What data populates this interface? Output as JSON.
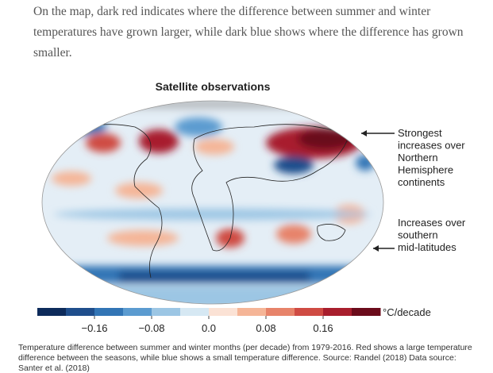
{
  "intro": "On the map, dark red indicates where the difference between summer and winter temperatures have grown larger, while dark blue shows where the difference has grown smaller.",
  "map": {
    "title": "Satellite observations",
    "annotations": [
      {
        "lines": [
          "Strongest",
          "increases over",
          "Northern",
          "Hemisphere",
          "continents"
        ]
      },
      {
        "lines": [
          "Increases over",
          "southern",
          "mid-latitudes"
        ]
      }
    ]
  },
  "colorbar": {
    "range": [
      -0.24,
      0.24
    ],
    "colors": [
      "#0d2b5b",
      "#1f4e8c",
      "#3275b5",
      "#5b9bd0",
      "#9cc6e4",
      "#d6e8f3",
      "#fbe2d5",
      "#f5b597",
      "#e7836a",
      "#cf4b43",
      "#a81e2d",
      "#6b0b1b"
    ],
    "ticks": [
      {
        "value": -0.16,
        "label": "−0.16"
      },
      {
        "value": -0.08,
        "label": "−0.08"
      },
      {
        "value": 0,
        "label": "0.0"
      },
      {
        "value": 0.08,
        "label": "0.08"
      },
      {
        "value": 0.16,
        "label": "0.16"
      }
    ],
    "unit": "°C/decade"
  },
  "caption": "Temperature difference between summer and winter months (per decade) from 1979-2016. Red shows a large temperature difference between the seasons, while blue shows a small temperature difference. Source: Randel (2018) Data source: Santer et al. (2018)"
}
